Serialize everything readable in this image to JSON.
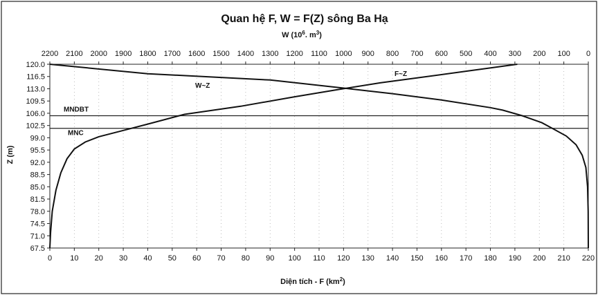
{
  "chart_data": {
    "type": "line",
    "title": "Quan hệ F, W = F(Z) sông Ba Hạ",
    "top_axis_label_base": "W (10",
    "top_axis_label_exp": "6",
    "top_axis_label_tail": ". m",
    "top_axis_label_exp2": "3",
    "top_axis_label_close": ")",
    "xlabel_base": "Diện tích - F (km",
    "xlabel_exp": "2",
    "xlabel_close": ")",
    "ylabel": "Z (m)",
    "x_bottom": {
      "min": 0,
      "max": 220,
      "ticks": [
        "0",
        "10",
        "20",
        "30",
        "40",
        "50",
        "60",
        "70",
        "80",
        "90",
        "100",
        "110",
        "120",
        "130",
        "140",
        "150",
        "160",
        "170",
        "180",
        "190",
        "200",
        "210",
        "220"
      ]
    },
    "x_top": {
      "min": 0,
      "max": 2200,
      "reversed": true,
      "ticks": [
        "2200",
        "2100",
        "2000",
        "1900",
        "1800",
        "1700",
        "1600",
        "1500",
        "1400",
        "1300",
        "1200",
        "1100",
        "1000",
        "900",
        "800",
        "700",
        "600",
        "500",
        "400",
        "300",
        "200",
        "100",
        "0"
      ]
    },
    "y": {
      "min": 67.5,
      "max": 120.0,
      "ticks": [
        "120.0",
        "116.5",
        "113.0",
        "109.5",
        "106.0",
        "102.5",
        "99.0",
        "95.5",
        "92.0",
        "88.5",
        "85.0",
        "81.5",
        "78.0",
        "74.5",
        "71.0",
        "67.5"
      ]
    },
    "series": [
      {
        "name": "F~Z",
        "axis": "bottom",
        "points": [
          [
            0,
            67.5
          ],
          [
            0.3,
            72
          ],
          [
            1,
            78
          ],
          [
            2.5,
            84
          ],
          [
            4.5,
            89
          ],
          [
            7,
            93
          ],
          [
            10,
            95.8
          ],
          [
            14.5,
            97.8
          ],
          [
            20,
            99.3
          ],
          [
            30,
            101.1
          ],
          [
            40,
            102.9
          ],
          [
            55,
            105.7
          ],
          [
            78,
            108.0
          ],
          [
            100,
            110.7
          ],
          [
            118,
            112.8
          ],
          [
            135,
            114.7
          ],
          [
            150,
            116.1
          ],
          [
            170,
            118.0
          ],
          [
            191,
            120.0
          ]
        ]
      },
      {
        "name": "W~Z",
        "axis": "top",
        "points": [
          [
            2200,
            120.0
          ],
          [
            1800,
            117.3
          ],
          [
            1300,
            115.5
          ],
          [
            1000,
            113.2
          ],
          [
            800,
            111.6
          ],
          [
            600,
            109.8
          ],
          [
            400,
            107.6
          ],
          [
            350,
            106.9
          ],
          [
            270,
            105.3
          ],
          [
            190,
            103.3
          ],
          [
            150,
            101.8
          ],
          [
            90,
            99.5
          ],
          [
            50,
            97.0
          ],
          [
            25,
            94.0
          ],
          [
            10,
            90.5
          ],
          [
            3,
            85.0
          ],
          [
            0.5,
            78.0
          ],
          [
            0,
            67.5
          ]
        ]
      }
    ],
    "reference_lines": [
      {
        "label": "MNDBT",
        "z": 105.3
      },
      {
        "label": "MNC",
        "z": 101.7
      }
    ],
    "grid": "dotted-vertical"
  }
}
